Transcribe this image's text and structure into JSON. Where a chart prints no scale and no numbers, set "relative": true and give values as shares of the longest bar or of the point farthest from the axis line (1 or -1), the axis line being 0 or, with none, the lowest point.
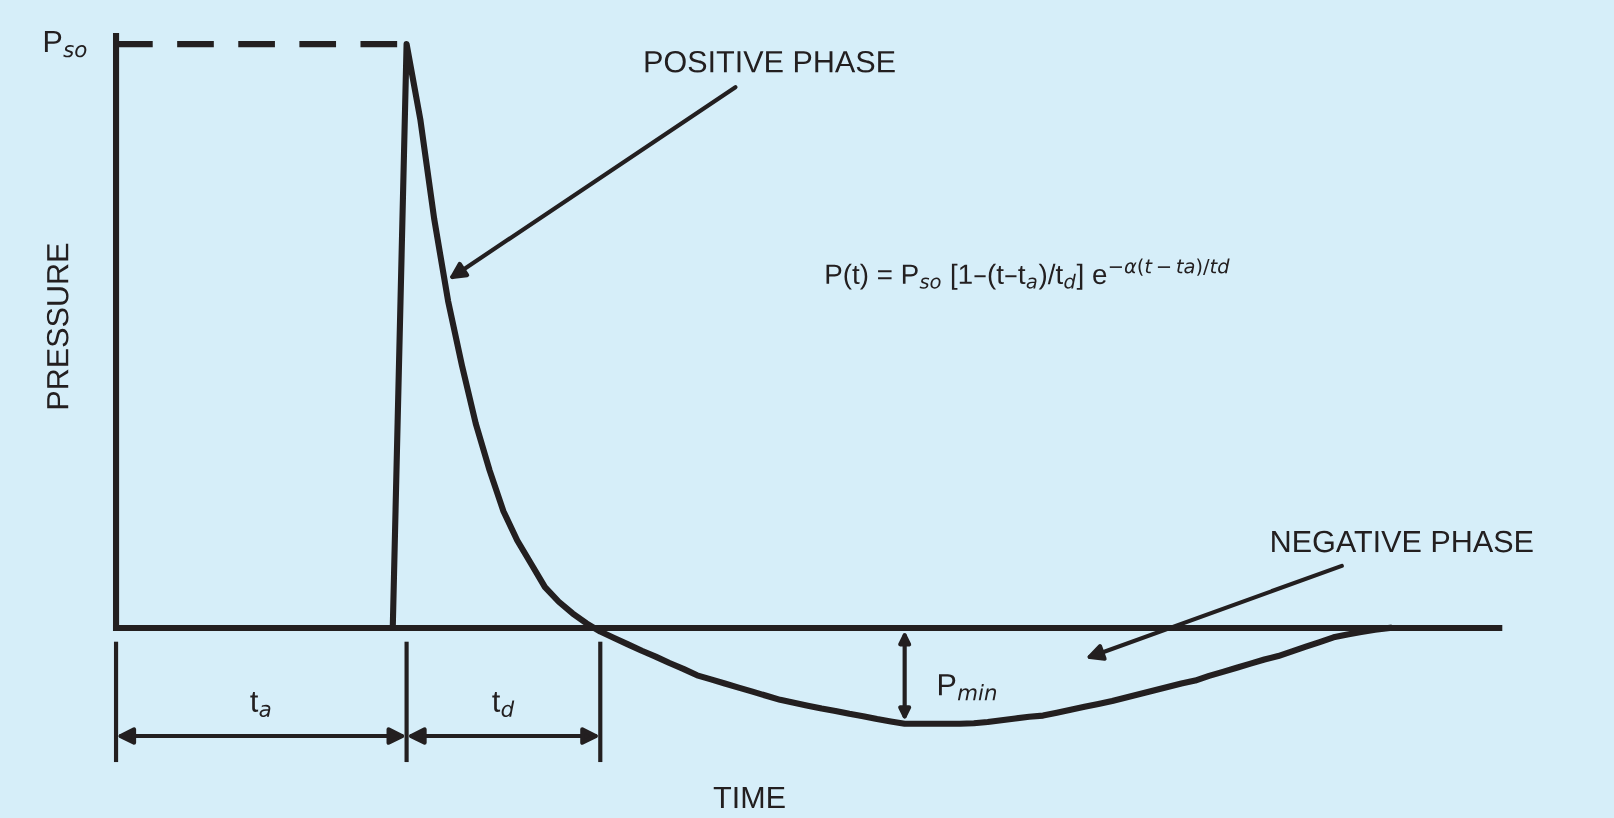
{
  "chart_data": {
    "type": "line",
    "relative": true,
    "xlabel": "TIME",
    "ylabel": "PRESSURE",
    "categories": [
      null,
      null,
      null,
      null,
      null,
      null,
      null,
      null,
      null,
      null,
      null,
      null,
      null,
      null,
      null,
      null,
      null,
      null,
      null,
      null,
      null,
      null,
      null,
      null,
      null,
      null,
      null,
      null,
      null,
      null,
      null,
      null,
      null,
      null,
      null,
      null,
      null,
      null,
      null,
      null,
      null,
      null,
      null,
      null,
      null,
      null,
      null,
      null,
      null,
      null,
      null,
      null,
      null,
      null,
      null,
      null,
      null,
      null,
      null,
      null,
      null,
      null,
      null,
      null,
      null,
      null,
      null,
      null,
      null,
      null,
      null,
      null,
      null,
      null,
      null,
      null,
      null,
      null,
      null,
      null,
      null,
      null,
      null,
      null,
      null,
      null,
      null,
      null,
      null,
      null,
      null,
      null,
      null
    ],
    "series": [
      {
        "color": "#231f20",
        "values": [
          0,
          0,
          0,
          0,
          0,
          0,
          0,
          0,
          0,
          0,
          0,
          0,
          0,
          0,
          0,
          0,
          0,
          0,
          0,
          0,
          0,
          1,
          0.87,
          0.7,
          0.56,
          0.45,
          0.35,
          0.27,
          0.2,
          0.15,
          0.11,
          0.07,
          0.045,
          0.025,
          0.008,
          -0.006,
          -0.017,
          -0.028,
          -0.039,
          -0.049,
          -0.06,
          -0.07,
          -0.081,
          -0.088,
          -0.095,
          -0.102,
          -0.109,
          -0.116,
          -0.123,
          -0.128,
          -0.133,
          -0.138,
          -0.142,
          -0.147,
          -0.151,
          -0.156,
          -0.16,
          -0.164,
          -0.164,
          -0.164,
          -0.164,
          -0.164,
          -0.163,
          -0.161,
          -0.158,
          -0.155,
          -0.152,
          -0.15,
          -0.145,
          -0.14,
          -0.135,
          -0.13,
          -0.125,
          -0.119,
          -0.113,
          -0.107,
          -0.101,
          -0.095,
          -0.09,
          -0.082,
          -0.075,
          -0.068,
          -0.061,
          -0.054,
          -0.048,
          -0.04,
          -0.032,
          -0.024,
          -0.016,
          -0.011,
          -0.007,
          -0.003,
          0
        ]
      }
    ],
    "ref_lines": [
      {
        "axis": "y",
        "value": 1,
        "label": "P$_{so}$",
        "line_style": "dashed",
        "color": "#231f20"
      }
    ],
    "annotations": [
      "POSITIVE PHASE",
      "P(t) = P$_{so}$ [1–(t–t$_{a}$)/t$_{d}$] e$^{−α(t−ta)/td}$",
      "NEGATIVE PHASE",
      "P$_{min}$",
      "t$_{a}$",
      "t$_{d}$"
    ]
  }
}
